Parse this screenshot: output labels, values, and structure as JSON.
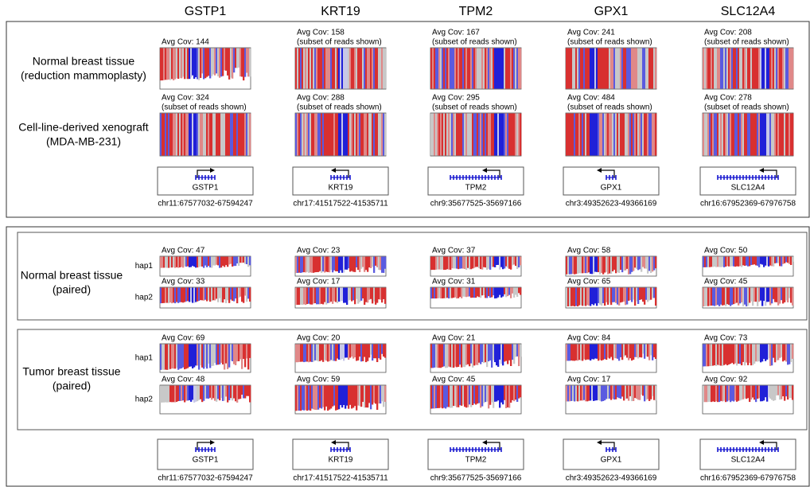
{
  "genes": [
    "GSTP1",
    "KRT19",
    "TPM2",
    "GPX1",
    "SLC12A4"
  ],
  "coordinates": [
    "chr11:67577032-67594247",
    "chr17:41517522-41535711",
    "chr9:35677525-35697166",
    "chr3:49352623-49366169",
    "chr16:67952369-67976758"
  ],
  "top_panel": {
    "rows": [
      {
        "label": [
          "Normal breast tissue",
          "(reduction mammoplasty)"
        ],
        "cells": [
          {
            "coverage": "Avg Cov: 144"
          },
          {
            "coverage": "Avg Cov: 158",
            "note": "(subset of reads shown)"
          },
          {
            "coverage": "Avg Cov: 167",
            "note": "(subset of reads shown)"
          },
          {
            "coverage": "Avg Cov: 241",
            "note": "(subset of reads shown)"
          },
          {
            "coverage": "Avg Cov: 208",
            "note": "(subset of reads shown)"
          }
        ]
      },
      {
        "label": [
          "Cell-line-derived xenograft",
          "(MDA-MB-231)"
        ],
        "cells": [
          {
            "coverage": "Avg Cov: 324",
            "note": "(subset of reads shown)"
          },
          {
            "coverage": "Avg Cov: 288",
            "note": "(subset of reads shown)"
          },
          {
            "coverage": "Avg Cov: 295",
            "note": "(subset of reads shown)"
          },
          {
            "coverage": "Avg Cov: 484",
            "note": "(subset of reads shown)"
          },
          {
            "coverage": "Avg Cov: 278",
            "note": "(subset of reads shown)"
          }
        ]
      }
    ]
  },
  "bottom_panel": {
    "groups": [
      {
        "label": [
          "Normal breast tissue",
          "(paired)"
        ],
        "haplotypes": [
          {
            "name": "hap1",
            "coverage": [
              "Avg Cov: 47",
              "Avg Cov: 23",
              "Avg Cov: 37",
              "Avg Cov: 58",
              "Avg Cov: 50"
            ]
          },
          {
            "name": "hap2",
            "coverage": [
              "Avg Cov: 33",
              "Avg Cov: 17",
              "Avg Cov: 31",
              "Avg Cov: 65",
              "Avg Cov: 45"
            ]
          }
        ]
      },
      {
        "label": [
          "Tumor breast tissue",
          "(paired)"
        ],
        "haplotypes": [
          {
            "name": "hap1",
            "coverage": [
              "Avg Cov: 69",
              "Avg Cov: 20",
              "Avg Cov: 21",
              "Avg Cov: 84",
              "Avg Cov: 73"
            ]
          },
          {
            "name": "hap2",
            "coverage": [
              "Avg Cov: 48",
              "Avg Cov: 59",
              "Avg Cov: 45",
              "Avg Cov: 17",
              "Avg Cov: 92"
            ]
          }
        ]
      }
    ]
  }
}
